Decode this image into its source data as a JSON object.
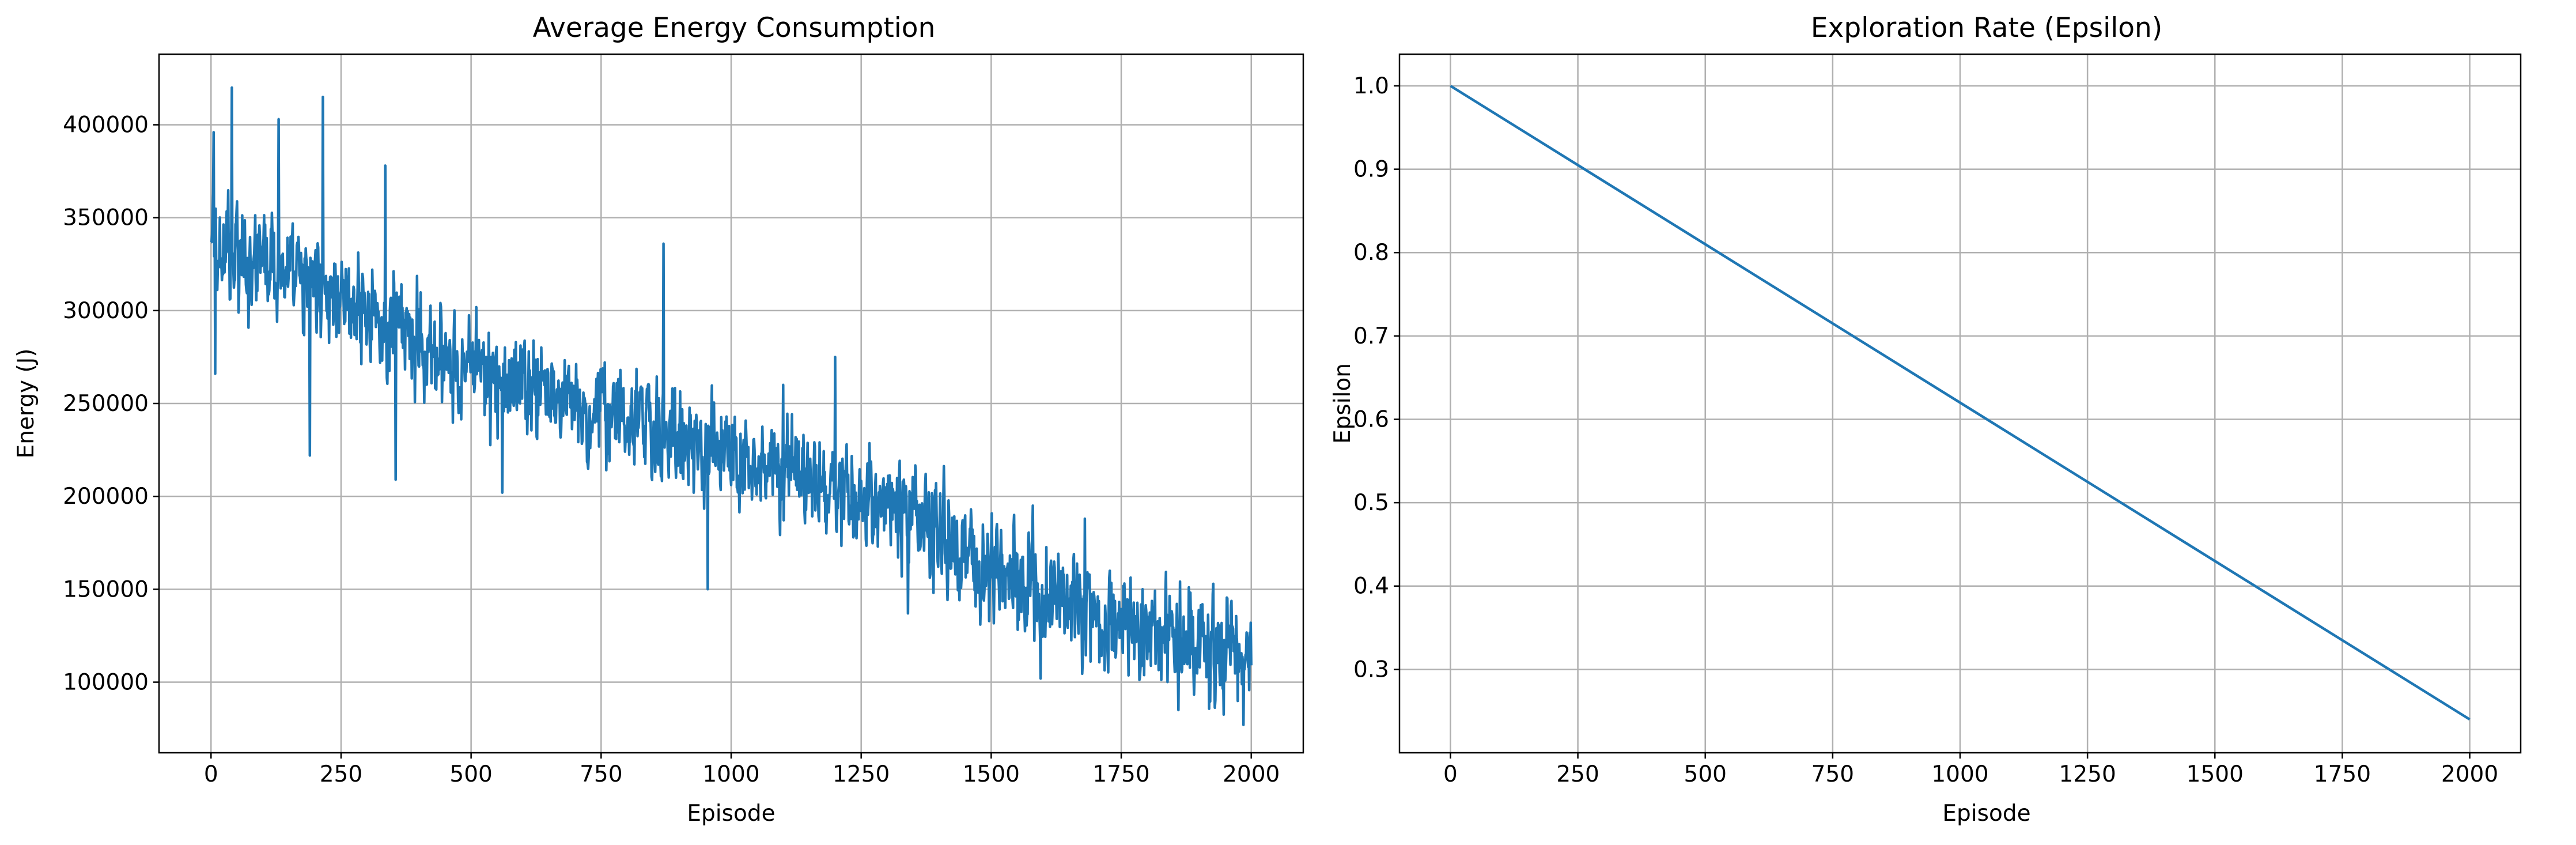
{
  "chart_data": [
    {
      "type": "line",
      "title": "Average Energy Consumption",
      "xlabel": "Episode",
      "ylabel": "Energy (J)",
      "xlim": [
        -100,
        2100
      ],
      "ylim": [
        62000,
        438000
      ],
      "xticks": [
        0,
        250,
        500,
        750,
        1000,
        1250,
        1500,
        1750,
        2000
      ],
      "yticks": [
        100000,
        150000,
        200000,
        250000,
        300000,
        350000,
        400000
      ],
      "grid": true,
      "color": "#1f77b4",
      "series": [
        {
          "episodes": [
            0,
            2000
          ],
          "trend": [
            [
              0,
              330000
            ],
            [
              100,
              325000
            ],
            [
              250,
              305000
            ],
            [
              400,
              285000
            ],
            [
              500,
              268000
            ],
            [
              750,
              245000
            ],
            [
              1000,
              220000
            ],
            [
              1250,
              200000
            ],
            [
              1400,
              180000
            ],
            [
              1500,
              160000
            ],
            [
              1750,
              130000
            ],
            [
              2000,
              112000
            ]
          ],
          "noise_amplitude": 28000,
          "peaks": [
            [
              5,
              396000
            ],
            [
              40,
              420000
            ],
            [
              130,
              403000
            ],
            [
              215,
              415000
            ],
            [
              335,
              378000
            ],
            [
              870,
              336000
            ],
            [
              1100,
              260000
            ],
            [
              1200,
              275000
            ],
            [
              1580,
              195000
            ],
            [
              1680,
              188000
            ]
          ],
          "troughs": [
            [
              8,
              266000
            ],
            [
              190,
              222000
            ],
            [
              355,
              209000
            ],
            [
              560,
              202000
            ],
            [
              955,
              150000
            ],
            [
              1340,
              137000
            ],
            [
              1595,
              102000
            ],
            [
              1860,
              85000
            ],
            [
              1985,
              77000
            ]
          ]
        }
      ]
    },
    {
      "type": "line",
      "title": "Exploration Rate (Epsilon)",
      "xlabel": "Episode",
      "ylabel": "Epsilon",
      "xlim": [
        -100,
        2100
      ],
      "ylim": [
        0.2,
        1.038
      ],
      "xticks": [
        0,
        250,
        500,
        750,
        1000,
        1250,
        1500,
        1750,
        2000
      ],
      "yticks": [
        0.3,
        0.4,
        0.5,
        0.6,
        0.7,
        0.8,
        0.9,
        1.0
      ],
      "ytick_labels": [
        "0.3",
        "0.4",
        "0.5",
        "0.6",
        "0.7",
        "0.8",
        "0.9",
        "1.0"
      ],
      "grid": true,
      "color": "#1f77b4",
      "series": [
        {
          "x": [
            0,
            2000
          ],
          "y": [
            1.0,
            0.24
          ]
        }
      ]
    }
  ]
}
